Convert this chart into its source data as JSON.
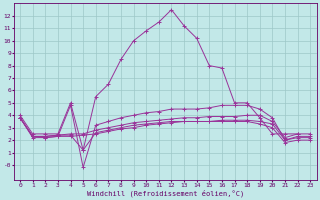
{
  "xlabel": "Windchill (Refroidissement éolien,°C)",
  "background_color": "#c2e8e8",
  "grid_color": "#9dc8c8",
  "line_color": "#993399",
  "xlim": [
    -0.5,
    23.5
  ],
  "ylim": [
    -1.2,
    13.0
  ],
  "yticks": [
    0,
    1,
    2,
    3,
    4,
    5,
    6,
    7,
    8,
    9,
    10,
    11,
    12
  ],
  "ytick_labels": [
    "-0",
    "1",
    "2",
    "3",
    "4",
    "5",
    "6",
    "7",
    "8",
    "9",
    "10",
    "11",
    "12"
  ],
  "xticks": [
    0,
    1,
    2,
    3,
    4,
    5,
    6,
    7,
    8,
    9,
    10,
    11,
    12,
    13,
    14,
    15,
    16,
    17,
    18,
    19,
    20,
    21,
    22,
    23
  ],
  "lines": [
    [
      4.0,
      2.5,
      2.5,
      2.5,
      5.0,
      1.2,
      5.5,
      6.5,
      8.5,
      10.0,
      10.8,
      11.5,
      12.5,
      11.2,
      10.2,
      8.0,
      7.8,
      5.0,
      5.0,
      3.8,
      2.5,
      2.5,
      2.5,
      null
    ],
    [
      3.8,
      2.3,
      2.3,
      2.4,
      2.5,
      2.5,
      2.8,
      3.0,
      3.2,
      3.4,
      3.5,
      3.6,
      3.7,
      3.8,
      3.8,
      3.9,
      3.9,
      3.9,
      4.0,
      4.0,
      3.5,
      2.2,
      2.5,
      2.5
    ],
    [
      3.8,
      2.2,
      2.2,
      2.3,
      2.3,
      2.4,
      2.5,
      2.7,
      2.9,
      3.0,
      3.2,
      3.3,
      3.4,
      3.5,
      3.5,
      3.5,
      3.6,
      3.6,
      3.6,
      3.5,
      3.3,
      2.0,
      2.3,
      2.3
    ],
    [
      3.8,
      2.3,
      2.2,
      2.3,
      4.8,
      -0.2,
      3.2,
      3.5,
      3.8,
      4.0,
      4.2,
      4.3,
      4.5,
      4.5,
      4.5,
      4.6,
      4.8,
      4.8,
      4.8,
      4.5,
      3.8,
      2.0,
      2.2,
      2.2
    ],
    [
      3.8,
      2.3,
      2.3,
      2.4,
      2.4,
      1.2,
      2.6,
      2.8,
      3.0,
      3.2,
      3.3,
      3.4,
      3.5,
      3.5,
      3.5,
      3.5,
      3.5,
      3.5,
      3.5,
      3.3,
      3.0,
      1.8,
      2.0,
      2.0
    ]
  ]
}
